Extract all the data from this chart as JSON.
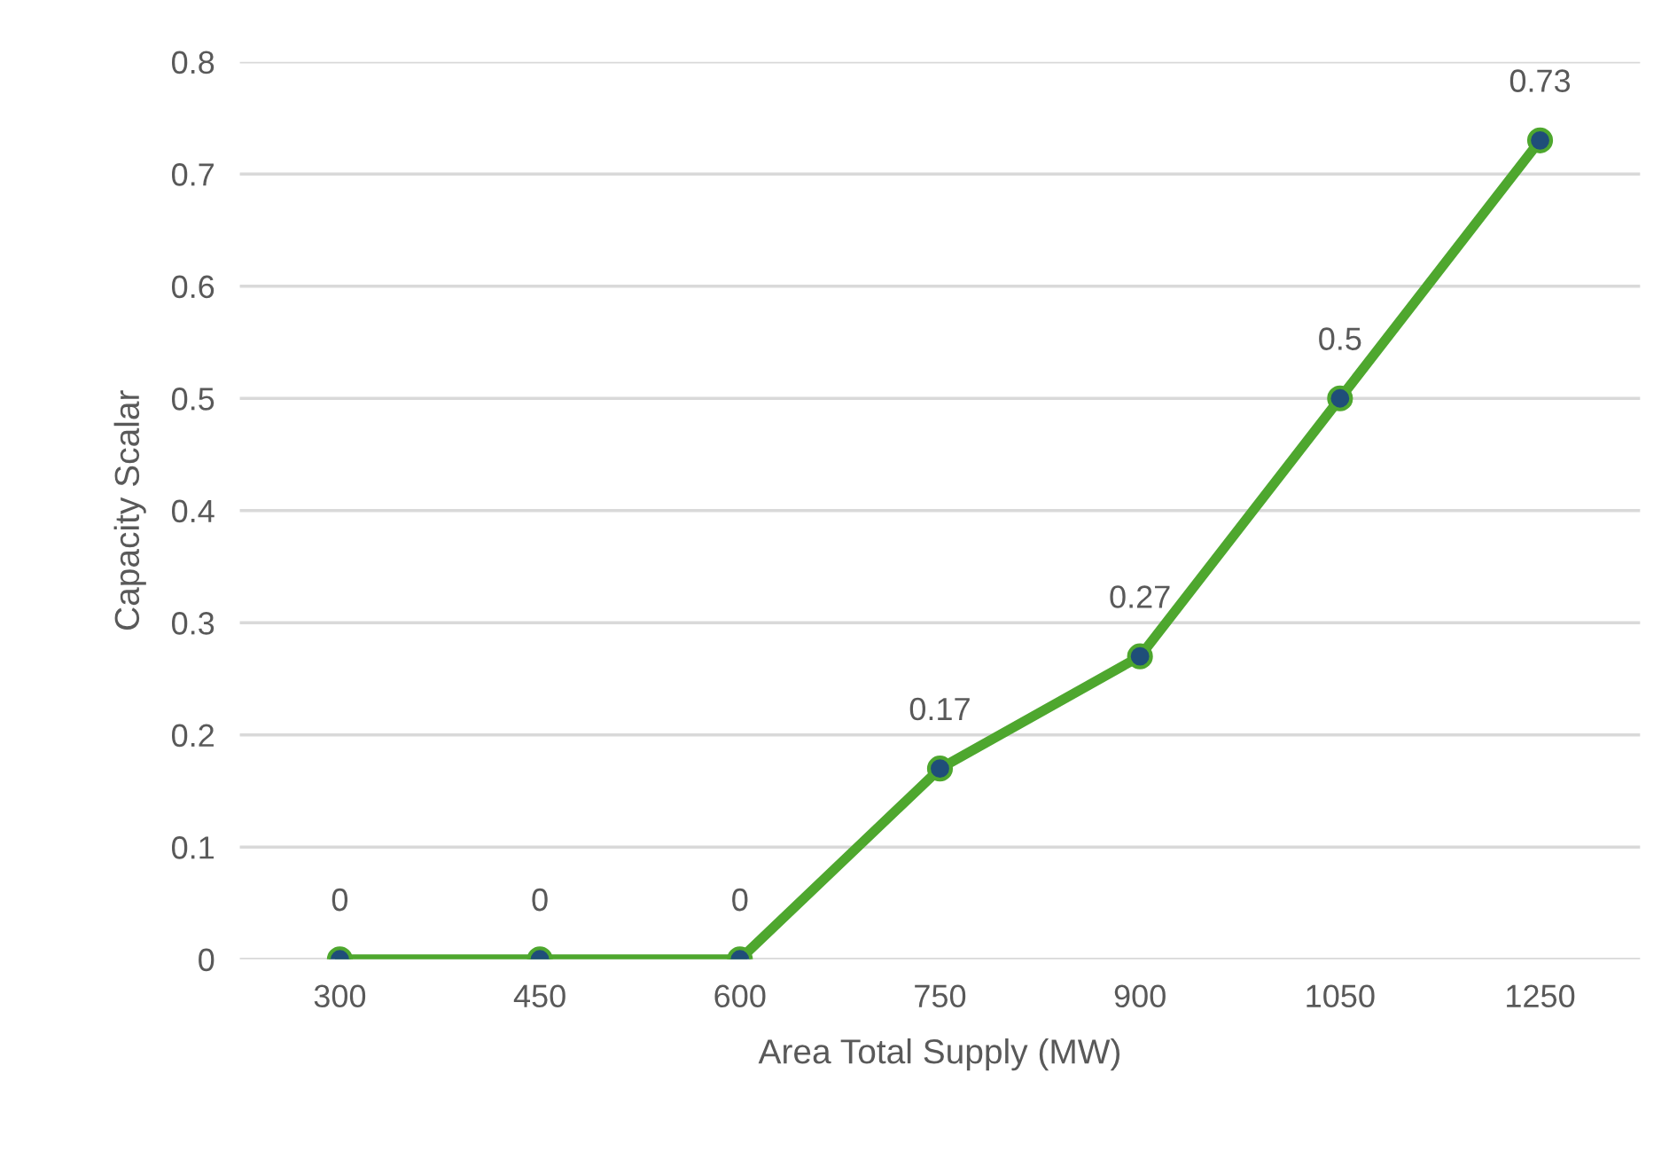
{
  "chart_data": {
    "type": "line",
    "xlabel": "Area Total Supply (MW)",
    "ylabel": "Capacity Scalar",
    "categories": [
      "300",
      "450",
      "600",
      "750",
      "900",
      "1050",
      "1250"
    ],
    "series": [
      {
        "color": "#4ea72e",
        "values": [
          0,
          0,
          0,
          0.17,
          0.27,
          0.5,
          0.73
        ]
      }
    ],
    "ylim": [
      0,
      0.8
    ],
    "yticks": [
      0,
      0.1,
      0.2,
      0.3,
      0.4,
      0.5,
      0.6,
      0.7,
      0.8
    ],
    "grid": "y",
    "marker": "circle",
    "line_style": "solid",
    "data_labels": true,
    "legend": false
  }
}
